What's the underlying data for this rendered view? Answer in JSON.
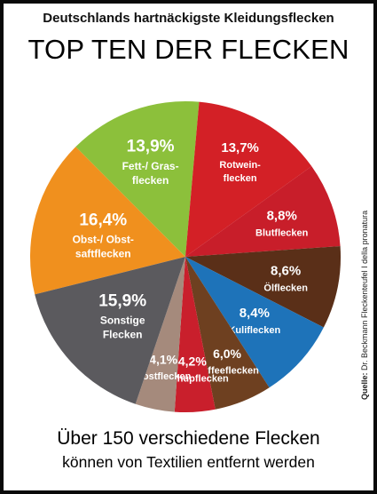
{
  "header": {
    "subtitle": "Deutschlands hartnäckigste Kleidungsflecken",
    "title": "TOP TEN DER FLECKEN"
  },
  "footer": {
    "line1": "Über 150 verschiedene Flecken",
    "line2": "können von Textilien entfernt werden",
    "source_label": "Quelle:",
    "source_text": "Dr. Beckmann Fleckenteufel I della pronatura"
  },
  "chart_data": {
    "type": "pie",
    "title": "TOP TEN DER FLECKEN",
    "slices": [
      {
        "label": "Obst-/ Obst-saftflecken",
        "lines": [
          "Obst-/ Obst-",
          "saftflecken"
        ],
        "pct_text": "16,4%",
        "value": 16.4,
        "color": "#f0901e"
      },
      {
        "label": "Fett-/ Grasflecken",
        "lines": [
          "Fett-/ Gras-",
          "flecken"
        ],
        "pct_text": "13,9%",
        "value": 13.9,
        "color": "#8cc03b"
      },
      {
        "label": "Rotweinflecken",
        "lines": [
          "Rotwein-",
          "flecken"
        ],
        "pct_text": "13,7%",
        "value": 13.7,
        "color": "#d32026"
      },
      {
        "label": "Blutflecken",
        "lines": [
          "Blutflecken"
        ],
        "pct_text": "8,8%",
        "value": 8.8,
        "color": "#c81e2a"
      },
      {
        "label": "Ölflecken",
        "lines": [
          "Ölflecken"
        ],
        "pct_text": "8,6%",
        "value": 8.6,
        "color": "#5a2f18"
      },
      {
        "label": "Kuliflecken",
        "lines": [
          "Kuliflecken"
        ],
        "pct_text": "8,4%",
        "value": 8.4,
        "color": "#1e73b9"
      },
      {
        "label": "Kaffeeflecken",
        "lines": [
          "Kaffeeflecken"
        ],
        "pct_text": "6,0%",
        "value": 6.0,
        "color": "#6e4020"
      },
      {
        "label": "Ketchupflecken",
        "lines": [
          "Ketchupflecken"
        ],
        "pct_text": "4,2%",
        "value": 4.2,
        "color": "#c91f2c"
      },
      {
        "label": "Rostflecken",
        "lines": [
          "Rostflecken"
        ],
        "pct_text": "4,1%",
        "value": 4.1,
        "color": "#a58a7c"
      },
      {
        "label": "Sonstige Flecken",
        "lines": [
          "Sonstige",
          "Flecken"
        ],
        "pct_text": "15,9%",
        "value": 15.9,
        "color": "#5b5a5e"
      }
    ]
  }
}
